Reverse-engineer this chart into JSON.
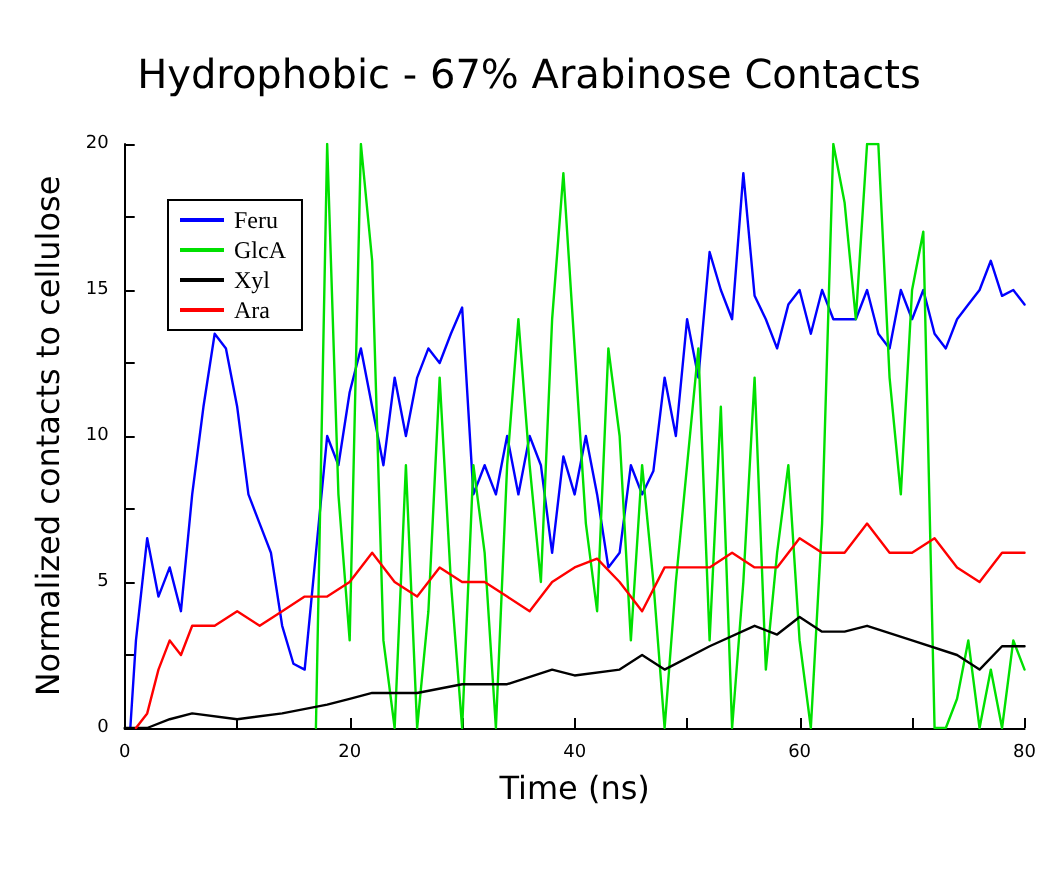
{
  "chart_data": {
    "type": "line",
    "title": "Hydrophobic - 67% Arabinose Contacts",
    "xlabel": "Time (ns)",
    "ylabel": "Normalized contacts to cellulose",
    "xlim": [
      0,
      80
    ],
    "ylim": [
      0,
      20
    ],
    "xticks": [
      0,
      {
        "value": 10,
        "label": null
      },
      20,
      {
        "value": 30,
        "label": null
      },
      40,
      {
        "value": 50,
        "label": null
      },
      60,
      {
        "value": 70,
        "label": null
      },
      80
    ],
    "yticks": [
      0,
      {
        "value": 2.5,
        "label": null
      },
      5,
      {
        "value": 7.5,
        "label": null
      },
      10,
      {
        "value": 12.5,
        "label": null
      },
      15,
      {
        "value": 17.5,
        "label": null
      },
      20
    ],
    "grid": false,
    "legend": "top left",
    "line_style": "solid",
    "marker": "none",
    "series": [
      {
        "name": "Feru",
        "color": "#0000ff",
        "x": [
          0.5,
          1,
          2,
          3,
          4,
          5,
          6,
          7,
          8,
          9,
          10,
          11,
          12,
          13,
          14,
          15,
          16,
          17,
          18,
          19,
          20,
          21,
          22,
          23,
          24,
          25,
          26,
          27,
          28,
          29,
          30,
          31,
          32,
          33,
          34,
          35,
          36,
          37,
          38,
          39,
          40,
          41,
          42,
          43,
          44,
          45,
          46,
          47,
          48,
          49,
          50,
          51,
          52,
          53,
          54,
          55,
          56,
          57,
          58,
          59,
          60,
          61,
          62,
          63,
          64,
          65,
          66,
          67,
          68,
          69,
          70,
          71,
          72,
          73,
          74,
          75,
          76,
          77,
          78,
          79,
          80
        ],
        "values": [
          0,
          3,
          6.5,
          4.5,
          5.5,
          4,
          8,
          11,
          13.5,
          13,
          11,
          8,
          7,
          6,
          3.5,
          2.2,
          2,
          6,
          10,
          9,
          11.5,
          13,
          11,
          9,
          12,
          10,
          12,
          13,
          12.5,
          13.5,
          14.4,
          8,
          9,
          8,
          10,
          8,
          10,
          9,
          6,
          9.3,
          8,
          10,
          8,
          5.5,
          6,
          9,
          8,
          8.8,
          12,
          10,
          14,
          12,
          16.3,
          15,
          14,
          19,
          14.8,
          14,
          13,
          14.5,
          15,
          13.5,
          15,
          14,
          14,
          14,
          15,
          13.5,
          13,
          15,
          14,
          15,
          13.5,
          13,
          14,
          14.5,
          15,
          16,
          14.8,
          15,
          14.5
        ]
      },
      {
        "name": "GlcA",
        "color": "#00e000",
        "x": [
          17,
          18,
          19,
          20,
          21,
          22,
          23,
          24,
          25,
          26,
          27,
          28,
          29,
          30,
          31,
          32,
          33,
          34,
          35,
          36,
          37,
          38,
          39,
          40,
          41,
          42,
          43,
          44,
          45,
          46,
          47,
          48,
          49,
          50,
          51,
          52,
          53,
          54,
          55,
          56,
          57,
          58,
          59,
          60,
          61,
          62,
          63,
          64,
          65,
          66,
          67,
          68,
          69,
          70,
          71,
          72,
          73,
          74,
          75,
          76,
          77,
          78,
          79,
          80
        ],
        "values": [
          0,
          20,
          8,
          3,
          20,
          16,
          3,
          0,
          9,
          0,
          4,
          12,
          5,
          0,
          9,
          6,
          0,
          9,
          14,
          9,
          5,
          14,
          19,
          13,
          7,
          4,
          13,
          10,
          3,
          9,
          5,
          0,
          5,
          9,
          13,
          3,
          11,
          0,
          5,
          12,
          2,
          6,
          9,
          3,
          0,
          7,
          20,
          18,
          14,
          20,
          20,
          12,
          8,
          15,
          17,
          0,
          0,
          1,
          3,
          0,
          2,
          0,
          3,
          2
        ]
      },
      {
        "name": "Xyl",
        "color": "#000000",
        "x": [
          0,
          2,
          4,
          6,
          10,
          14,
          18,
          20,
          22,
          26,
          30,
          34,
          38,
          40,
          44,
          46,
          48,
          52,
          56,
          58,
          60,
          62,
          64,
          66,
          70,
          74,
          76,
          78,
          80
        ],
        "values": [
          0,
          0,
          0.3,
          0.5,
          0.3,
          0.5,
          0.8,
          1,
          1.2,
          1.2,
          1.5,
          1.5,
          2,
          1.8,
          2,
          2.5,
          2,
          2.8,
          3.5,
          3.2,
          3.8,
          3.3,
          3.3,
          3.5,
          3,
          2.5,
          2,
          2.8,
          2.8
        ]
      },
      {
        "name": "Ara",
        "color": "#ff0000",
        "x": [
          1,
          2,
          3,
          4,
          5,
          6,
          8,
          10,
          12,
          14,
          16,
          18,
          20,
          22,
          24,
          26,
          28,
          30,
          32,
          34,
          36,
          38,
          40,
          42,
          44,
          46,
          48,
          50,
          52,
          54,
          56,
          58,
          60,
          62,
          64,
          66,
          68,
          70,
          72,
          74,
          76,
          78,
          80
        ],
        "values": [
          0,
          0.5,
          2,
          3,
          2.5,
          3.5,
          3.5,
          4,
          3.5,
          4,
          4.5,
          4.5,
          5,
          6,
          5,
          4.5,
          5.5,
          5,
          5,
          4.5,
          4,
          5,
          5.5,
          5.8,
          5,
          4,
          5.5,
          5.5,
          5.5,
          6,
          5.5,
          5.5,
          6.5,
          6,
          6,
          7,
          6,
          6,
          6.5,
          5.5,
          5,
          6,
          6
        ]
      }
    ]
  }
}
